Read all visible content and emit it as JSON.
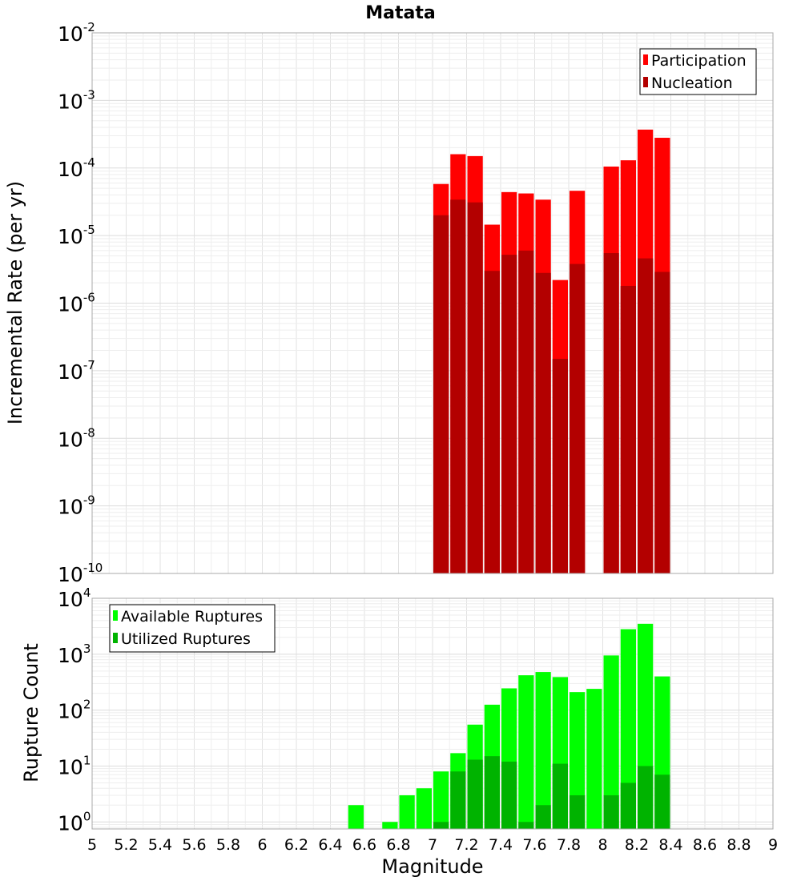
{
  "chart_data": [
    {
      "type": "bar",
      "title": "Matata",
      "ylabel": "Incremental Rate (per yr)",
      "xlabel": "",
      "yscale": "log",
      "ylim": [
        1e-10,
        0.01
      ],
      "xlim": [
        5,
        9
      ],
      "grid": true,
      "legend_position": "top-right",
      "y_tick_exponents": [
        "-10",
        "-9",
        "-8",
        "-7",
        "-6",
        "-5",
        "-4",
        "-3",
        "-2"
      ],
      "y_tick_base": "10",
      "x": [
        7.05,
        7.15,
        7.25,
        7.35,
        7.45,
        7.55,
        7.65,
        7.75,
        7.85,
        8.05,
        8.15,
        8.25,
        8.35
      ],
      "series": [
        {
          "name": "Participation",
          "color": "#ff0000",
          "values": [
            5.8e-05,
            0.00016,
            0.00015,
            1.45e-05,
            4.4e-05,
            4.2e-05,
            3.4e-05,
            2.2e-06,
            4.6e-05,
            0.000105,
            0.00013,
            0.00037,
            0.00028
          ]
        },
        {
          "name": "Nucleation",
          "color": "#b30000",
          "values": [
            2e-05,
            3.4e-05,
            3.1e-05,
            3e-06,
            5.2e-06,
            6e-06,
            2.8e-06,
            1.5e-07,
            3.8e-06,
            5.5e-06,
            1.8e-06,
            4.6e-06,
            2.9e-06
          ]
        }
      ]
    },
    {
      "type": "bar",
      "title": "",
      "ylabel": "Rupture Count",
      "xlabel": "Magnitude",
      "yscale": "log",
      "ylim": [
        0.75,
        10000
      ],
      "xlim": [
        5,
        9
      ],
      "grid": true,
      "legend_position": "top-left",
      "y_tick_exponents": [
        "0",
        "1",
        "2",
        "3",
        "4"
      ],
      "y_tick_base": "10",
      "x_ticks": [
        "5",
        "5.2",
        "5.4",
        "5.6",
        "5.8",
        "6",
        "6.2",
        "6.4",
        "6.6",
        "6.8",
        "7",
        "7.2",
        "7.4",
        "7.6",
        "7.8",
        "8",
        "8.2",
        "8.4",
        "8.6",
        "8.8",
        "9"
      ],
      "x": [
        6.55,
        6.75,
        6.85,
        6.95,
        7.05,
        7.15,
        7.25,
        7.35,
        7.45,
        7.55,
        7.65,
        7.75,
        7.85,
        7.95,
        8.05,
        8.15,
        8.25,
        8.35
      ],
      "series": [
        {
          "name": "Available Ruptures",
          "color": "#00ff00",
          "values": [
            2,
            1,
            3,
            4,
            8,
            17,
            55,
            125,
            245,
            420,
            480,
            390,
            210,
            240,
            950,
            2800,
            3500,
            400
          ]
        },
        {
          "name": "Utilized Ruptures",
          "color": "#00b300",
          "values": [
            null,
            null,
            null,
            null,
            1,
            8,
            13,
            15,
            12,
            1,
            2,
            11,
            3,
            null,
            3,
            5,
            10,
            7
          ]
        }
      ]
    }
  ]
}
